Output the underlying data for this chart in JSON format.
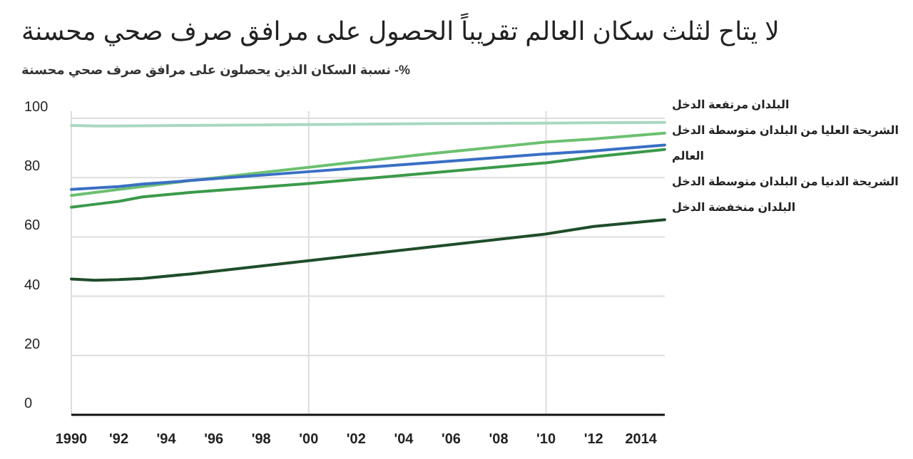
{
  "chart_data": {
    "type": "line",
    "title": "لا يتاح لثلث سكان العالم تقريباً الحصول على مرافق صرف صحي محسنة",
    "subtitle": "%- نسبة السكان الذين يحصلون على مرافق صرف صحي محسنة",
    "x": [
      1990,
      1991,
      1992,
      1993,
      1995,
      2000,
      2005,
      2010,
      2012,
      2015
    ],
    "series": [
      {
        "name": "البلدان مرتفعة الدخل",
        "color": "#a8d8c0",
        "values": [
          97.6,
          97.4,
          97.4,
          97.5,
          97.6,
          97.9,
          98.2,
          98.4,
          98.5,
          98.6
        ]
      },
      {
        "name": "الشريحة العليا من البلدان متوسطة الدخل",
        "color": "#6cc070",
        "values": [
          74,
          75,
          76,
          77,
          79,
          83.5,
          88,
          92,
          93,
          95
        ]
      },
      {
        "name": "العالم",
        "color": "#3a6fc4",
        "values": [
          76,
          76.5,
          77,
          77.8,
          79,
          82,
          85,
          88,
          89,
          91
        ]
      },
      {
        "name": "الشريحة الدنيا من البلدان متوسطة الدخل",
        "color": "#3a9a4a",
        "values": [
          70,
          71,
          72,
          73.5,
          75,
          78,
          81.5,
          85,
          87,
          89.5
        ]
      },
      {
        "name": "البلدان منخفضة الدخل",
        "color": "#1f4d2a",
        "values": [
          45.8,
          45.4,
          45.6,
          46,
          47.5,
          52,
          56.5,
          61,
          63.5,
          65.8
        ]
      }
    ],
    "xlim": [
      1990,
      2015
    ],
    "ylim": [
      0,
      100
    ],
    "xticks": [
      {
        "value": 1990,
        "label": "1990"
      },
      {
        "value": 1992,
        "label": "'92"
      },
      {
        "value": 1994,
        "label": "'94"
      },
      {
        "value": 1996,
        "label": "'96"
      },
      {
        "value": 1998,
        "label": "'98"
      },
      {
        "value": 2000,
        "label": "'00"
      },
      {
        "value": 2002,
        "label": "'02"
      },
      {
        "value": 2004,
        "label": "'04"
      },
      {
        "value": 2006,
        "label": "'06"
      },
      {
        "value": 2008,
        "label": "'08"
      },
      {
        "value": 2010,
        "label": "'10"
      },
      {
        "value": 2012,
        "label": "'12"
      },
      {
        "value": 2014,
        "label": "2014"
      }
    ],
    "yticks": [
      0,
      20,
      40,
      60,
      80,
      100
    ],
    "grid": true,
    "legend": "right",
    "marker": "none",
    "line_style": "solid"
  }
}
